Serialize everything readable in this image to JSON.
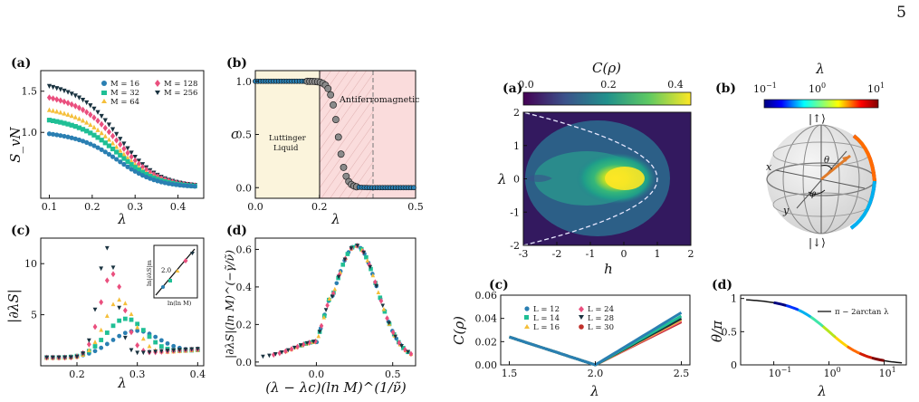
{
  "page_number": "5",
  "panels_left": {
    "a": {
      "label": "(a)",
      "xlabel": "λ",
      "ylabel": "S_vN",
      "legend": [
        "M = 16",
        "M = 32",
        "M = 64",
        "M = 128",
        "M = 256"
      ]
    },
    "b": {
      "label": "(b)",
      "xlabel": "λ",
      "ylabel": "c",
      "region_left": "Luttinger Liquid",
      "region_right": "Antiferromagnetic"
    },
    "c": {
      "label": "(c)",
      "xlabel": "λ",
      "ylabel": "|∂λS|",
      "inset_xlabel": "ln(ln M)",
      "inset_ylabel": "ln|∂λS|m"
    },
    "d": {
      "label": "(d)",
      "xlabel": "(λ − λc)(ln M)^(1/ν̃)",
      "ylabel": "|∂λS|(ln M)^(−γ̃/ν̃)"
    }
  },
  "panels_right": {
    "a": {
      "label": "(a)",
      "colorbar_title": "C(ρ)",
      "xlabel": "h",
      "ylabel": "λ"
    },
    "b": {
      "label": "(b)",
      "colorbar_title": "λ",
      "ket_up": "|↑⟩",
      "ket_down": "|↓⟩",
      "axis_x": "x",
      "axis_y": "y",
      "theta": "θ",
      "phi": "φ"
    },
    "c": {
      "label": "(c)",
      "xlabel": "λ",
      "ylabel": "C(ρ)",
      "legend": [
        "L = 12",
        "L = 24",
        "L = 14",
        "L = 28",
        "L = 16",
        "L = 30"
      ]
    },
    "d": {
      "label": "(d)",
      "xlabel": "λ",
      "ylabel": "θ/π",
      "legend": "π − 2arctan λ"
    }
  },
  "chart_data": [
    {
      "id": "left-a",
      "type": "scatter",
      "xlim": [
        0.08,
        0.46
      ],
      "ylim": [
        0.2,
        1.75
      ],
      "xticks": [
        "0.1",
        "0.2",
        "0.3",
        "0.4"
      ],
      "yticks": [
        "1.0",
        "1.5"
      ],
      "series": [
        {
          "name": "M = 16",
          "color": "#2a7fb2",
          "low": 1.0
        },
        {
          "name": "M = 32",
          "color": "#1fbf95",
          "low": 1.17
        },
        {
          "name": "M = 64",
          "color": "#f5bf3a",
          "low": 1.3
        },
        {
          "name": "M = 128",
          "color": "#ea4f7e",
          "low": 1.45
        },
        {
          "name": "M = 256",
          "color": "#1a3340",
          "low": 1.59
        }
      ]
    },
    {
      "id": "left-b",
      "type": "scatter",
      "xlim": [
        0,
        0.5
      ],
      "ylim": [
        -0.1,
        1.1
      ],
      "xticks": [
        "0.0",
        "0.2",
        "0.5"
      ],
      "yticks": [
        "0.0",
        "0.5",
        "1.0"
      ],
      "lambda_c": 0.2,
      "dashed_line": 0.33
    },
    {
      "id": "left-c",
      "type": "scatter",
      "xlim": [
        0.14,
        0.41
      ],
      "ylim": [
        0,
        12.5
      ],
      "xticks": [
        "0.2",
        "0.3",
        "0.4"
      ],
      "yticks": [
        "5",
        "10"
      ]
    },
    {
      "id": "left-d",
      "type": "scatter",
      "xlim": [
        -0.4,
        0.65
      ],
      "ylim": [
        -0.02,
        0.66
      ],
      "xticks": [
        "0.0",
        "0.5"
      ],
      "yticks": [
        "0.0",
        "0.2",
        "0.4",
        "0.6"
      ]
    },
    {
      "id": "right-a",
      "type": "heatmap",
      "xlim": [
        -3,
        2
      ],
      "ylim": [
        -2,
        2
      ],
      "xticks": [
        "-3",
        "-2",
        "-1",
        "0",
        "1",
        "2"
      ],
      "yticks": [
        "-2",
        "-1",
        "0",
        "1",
        "2"
      ],
      "colorbar_ticks": [
        "0.0",
        "0.2",
        "0.4"
      ]
    },
    {
      "id": "right-c",
      "type": "line",
      "xlim": [
        1.45,
        2.55
      ],
      "ylim": [
        0,
        0.06
      ],
      "xticks": [
        "1.5",
        "2.0",
        "2.5"
      ],
      "yticks": [
        "0.00",
        "0.02",
        "0.04",
        "0.06"
      ]
    },
    {
      "id": "right-d",
      "type": "line",
      "xscale": "log",
      "ylim": [
        0,
        1.05
      ],
      "xticks": [
        "10^-1",
        "10^0",
        "10^1"
      ],
      "yticks": [
        "0",
        "0.5",
        "1"
      ]
    }
  ]
}
